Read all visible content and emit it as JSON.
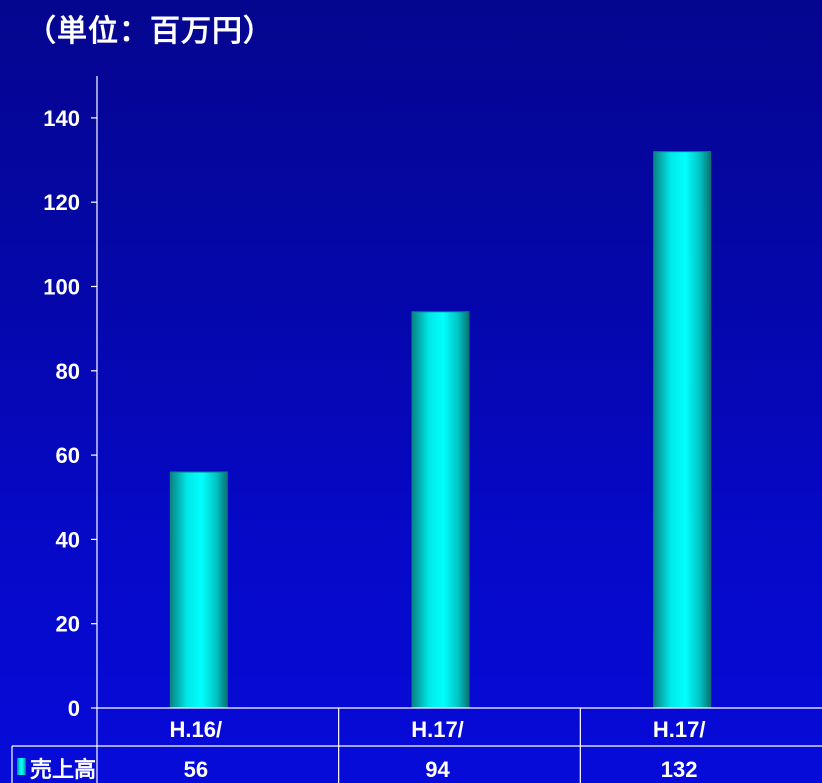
{
  "unit_label": "（単位：百万円）",
  "chart_data": {
    "type": "bar",
    "categories": [
      "H.16/",
      "H.17/",
      "H.17/"
    ],
    "series": [
      {
        "name": "売上高",
        "values": [
          56,
          94,
          132
        ]
      }
    ],
    "ylim": [
      0,
      150
    ],
    "yticks": [
      0,
      20,
      40,
      60,
      80,
      100,
      120,
      140
    ],
    "title": "",
    "xlabel": "",
    "ylabel": "",
    "data_table": true,
    "grid": false,
    "legend": "data-table-left"
  },
  "colors": {
    "background_top": "#05068f",
    "background_bottom": "#070bd9",
    "bar_edge": "#0a8a8a",
    "bar_center": "#00ffff",
    "axis": "#ffffff"
  }
}
